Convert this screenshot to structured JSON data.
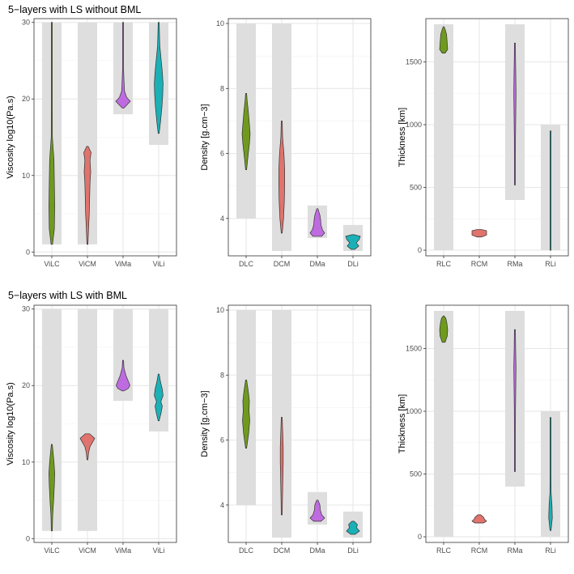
{
  "rows": [
    {
      "title": "5−layers with LS without BML"
    },
    {
      "title": "5−layers with LS with BML"
    }
  ],
  "chart_data": [
    {
      "type": "violin",
      "row": 0,
      "col": 0,
      "ylabel": "Viscosity log10(Pa.s)",
      "ylim": [
        -0.5,
        30.5
      ],
      "yticks": [
        0,
        10,
        20,
        30
      ],
      "categories": [
        "ViLC",
        "ViCM",
        "ViMa",
        "ViLi"
      ],
      "prior_ranges": [
        [
          1,
          30
        ],
        [
          1,
          30
        ],
        [
          18,
          30
        ],
        [
          14,
          30
        ]
      ],
      "colors": [
        "#6f9a1e",
        "#e0736d",
        "#bf6be0",
        "#1bb0b6"
      ],
      "violins": [
        {
          "name": "ViLC",
          "min": 1,
          "max": 30,
          "profile": [
            [
              1,
              0.1
            ],
            [
              3,
              0.35
            ],
            [
              6,
              0.4
            ],
            [
              9,
              0.35
            ],
            [
              12,
              0.3
            ],
            [
              15,
              0.08
            ],
            [
              20,
              0.06
            ],
            [
              25,
              0.06
            ],
            [
              30,
              0.04
            ]
          ]
        },
        {
          "name": "ViCM",
          "min": 1,
          "max": 13.8,
          "profile": [
            [
              1,
              0.05
            ],
            [
              3,
              0.15
            ],
            [
              5,
              0.25
            ],
            [
              7,
              0.3
            ],
            [
              9,
              0.35
            ],
            [
              10.5,
              0.45
            ],
            [
              12,
              0.35
            ],
            [
              13,
              0.5
            ],
            [
              13.8,
              0.1
            ]
          ]
        },
        {
          "name": "ViMa",
          "min": 18.8,
          "max": 30,
          "profile": [
            [
              18.8,
              0.1
            ],
            [
              19.3,
              0.6
            ],
            [
              19.7,
              1.0
            ],
            [
              20.2,
              0.5
            ],
            [
              21,
              0.2
            ],
            [
              22.5,
              0.12
            ],
            [
              24,
              0.06
            ],
            [
              27,
              0.04
            ],
            [
              30,
              0.02
            ]
          ]
        },
        {
          "name": "ViLi",
          "min": 15.5,
          "max": 30,
          "profile": [
            [
              15.5,
              0.05
            ],
            [
              17,
              0.25
            ],
            [
              19,
              0.45
            ],
            [
              20.5,
              0.55
            ],
            [
              22,
              0.6
            ],
            [
              23.5,
              0.5
            ],
            [
              25,
              0.35
            ],
            [
              27,
              0.15
            ],
            [
              30,
              0.05
            ]
          ]
        }
      ]
    },
    {
      "type": "violin",
      "row": 0,
      "col": 1,
      "ylabel": "Density [g.cm−3]",
      "ylim": [
        2.85,
        10.15
      ],
      "yticks": [
        4,
        6,
        8,
        10
      ],
      "categories": [
        "DLC",
        "DCM",
        "DMa",
        "DLi"
      ],
      "prior_ranges": [
        [
          4,
          10
        ],
        [
          3,
          10
        ],
        [
          3.4,
          4.4
        ],
        [
          3,
          3.8
        ]
      ],
      "colors": [
        "#6f9a1e",
        "#e0736d",
        "#bf6be0",
        "#1bb0b6"
      ],
      "violins": [
        {
          "name": "DLC",
          "min": 5.5,
          "max": 7.85,
          "profile": [
            [
              5.5,
              0.05
            ],
            [
              5.9,
              0.25
            ],
            [
              6.3,
              0.45
            ],
            [
              6.6,
              0.55
            ],
            [
              6.9,
              0.45
            ],
            [
              7.3,
              0.3
            ],
            [
              7.6,
              0.15
            ],
            [
              7.85,
              0.03
            ]
          ]
        },
        {
          "name": "DCM",
          "min": 3.55,
          "max": 7.0,
          "profile": [
            [
              3.55,
              0.05
            ],
            [
              4.0,
              0.25
            ],
            [
              4.5,
              0.35
            ],
            [
              5.0,
              0.4
            ],
            [
              5.5,
              0.4
            ],
            [
              6.0,
              0.3
            ],
            [
              6.5,
              0.12
            ],
            [
              7.0,
              0.03
            ]
          ]
        },
        {
          "name": "DMa",
          "min": 3.45,
          "max": 4.3,
          "profile": [
            [
              3.45,
              0.6
            ],
            [
              3.55,
              1.0
            ],
            [
              3.65,
              0.7
            ],
            [
              3.8,
              0.5
            ],
            [
              3.95,
              0.45
            ],
            [
              4.1,
              0.35
            ],
            [
              4.3,
              0.08
            ]
          ]
        },
        {
          "name": "DLi",
          "min": 3.05,
          "max": 3.5,
          "profile": [
            [
              3.05,
              0.25
            ],
            [
              3.15,
              0.8
            ],
            [
              3.25,
              0.45
            ],
            [
              3.35,
              0.85
            ],
            [
              3.45,
              1.0
            ],
            [
              3.5,
              0.15
            ]
          ]
        }
      ]
    },
    {
      "type": "violin",
      "row": 0,
      "col": 2,
      "ylabel": "Thickness [km]",
      "ylim": [
        -45,
        1845
      ],
      "yticks": [
        0,
        500,
        1000,
        1500
      ],
      "categories": [
        "RLC",
        "RCM",
        "RMa",
        "RLi"
      ],
      "prior_ranges": [
        [
          0,
          1800
        ],
        [
          0,
          0
        ],
        [
          400,
          1800
        ],
        [
          0,
          1000
        ]
      ],
      "colors": [
        "#6f9a1e",
        "#e0736d",
        "#bf6be0",
        "#1bb0b6"
      ],
      "violins": [
        {
          "name": "RLC",
          "min": 1570,
          "max": 1780,
          "profile": [
            [
              1570,
              0.2
            ],
            [
              1600,
              0.55
            ],
            [
              1640,
              0.5
            ],
            [
              1680,
              0.45
            ],
            [
              1720,
              0.4
            ],
            [
              1760,
              0.2
            ],
            [
              1780,
              0.05
            ]
          ]
        },
        {
          "name": "RCM",
          "min": 105,
          "max": 165,
          "profile": [
            [
              105,
              0.3
            ],
            [
              120,
              1.0
            ],
            [
              140,
              1.0
            ],
            [
              155,
              1.0
            ],
            [
              165,
              0.3
            ]
          ]
        },
        {
          "name": "RMa",
          "min": 520,
          "max": 1650,
          "profile": [
            [
              520,
              0.02
            ],
            [
              700,
              0.06
            ],
            [
              900,
              0.08
            ],
            [
              1100,
              0.12
            ],
            [
              1250,
              0.15
            ],
            [
              1400,
              0.12
            ],
            [
              1550,
              0.08
            ],
            [
              1650,
              0.02
            ]
          ]
        },
        {
          "name": "RLi",
          "min": 0,
          "max": 950,
          "profile": [
            [
              0,
              0.02
            ],
            [
              150,
              0.04
            ],
            [
              300,
              0.06
            ],
            [
              500,
              0.05
            ],
            [
              700,
              0.04
            ],
            [
              950,
              0.02
            ]
          ]
        }
      ]
    },
    {
      "type": "violin",
      "row": 1,
      "col": 0,
      "ylabel": "Viscosity log10(Pa.s)",
      "ylim": [
        -0.5,
        30.5
      ],
      "yticks": [
        0,
        10,
        20,
        30
      ],
      "categories": [
        "ViLC",
        "ViCM",
        "ViMa",
        "ViLi"
      ],
      "prior_ranges": [
        [
          1,
          30
        ],
        [
          1,
          30
        ],
        [
          18,
          30
        ],
        [
          14,
          30
        ]
      ],
      "colors": [
        "#6f9a1e",
        "#e0736d",
        "#bf6be0",
        "#1bb0b6"
      ],
      "violins": [
        {
          "name": "ViLC",
          "min": 1,
          "max": 12.3,
          "profile": [
            [
              1,
              0.05
            ],
            [
              3,
              0.12
            ],
            [
              5,
              0.25
            ],
            [
              7,
              0.35
            ],
            [
              8.5,
              0.4
            ],
            [
              10,
              0.3
            ],
            [
              11.5,
              0.15
            ],
            [
              12.3,
              0.03
            ]
          ]
        },
        {
          "name": "ViCM",
          "min": 10.3,
          "max": 13.7,
          "profile": [
            [
              10.3,
              0.05
            ],
            [
              11.2,
              0.15
            ],
            [
              12.0,
              0.35
            ],
            [
              12.6,
              0.7
            ],
            [
              13.1,
              1.0
            ],
            [
              13.7,
              0.3
            ]
          ]
        },
        {
          "name": "ViMa",
          "min": 19.3,
          "max": 23.3,
          "profile": [
            [
              19.3,
              0.1
            ],
            [
              19.6,
              0.7
            ],
            [
              20.0,
              0.95
            ],
            [
              20.5,
              0.75
            ],
            [
              21.3,
              0.4
            ],
            [
              22.3,
              0.12
            ],
            [
              23.3,
              0.02
            ]
          ]
        },
        {
          "name": "ViLi",
          "min": 15.4,
          "max": 21.5,
          "profile": [
            [
              15.4,
              0.05
            ],
            [
              16.3,
              0.3
            ],
            [
              17.3,
              0.5
            ],
            [
              17.9,
              0.3
            ],
            [
              18.7,
              0.6
            ],
            [
              19.5,
              0.5
            ],
            [
              20.5,
              0.25
            ],
            [
              21.5,
              0.04
            ]
          ]
        }
      ]
    },
    {
      "type": "violin",
      "row": 1,
      "col": 1,
      "ylabel": "Density [g.cm−3]",
      "ylim": [
        2.85,
        10.15
      ],
      "yticks": [
        4,
        6,
        8,
        10
      ],
      "categories": [
        "DLC",
        "DCM",
        "DMa",
        "DLi"
      ],
      "prior_ranges": [
        [
          4,
          10
        ],
        [
          3,
          10
        ],
        [
          3.4,
          4.4
        ],
        [
          3,
          3.8
        ]
      ],
      "colors": [
        "#6f9a1e",
        "#e0736d",
        "#bf6be0",
        "#1bb0b6"
      ],
      "violins": [
        {
          "name": "DLC",
          "min": 5.75,
          "max": 7.85,
          "profile": [
            [
              5.75,
              0.05
            ],
            [
              6.2,
              0.35
            ],
            [
              6.6,
              0.5
            ],
            [
              6.9,
              0.4
            ],
            [
              7.2,
              0.45
            ],
            [
              7.5,
              0.3
            ],
            [
              7.85,
              0.03
            ]
          ]
        },
        {
          "name": "DCM",
          "min": 3.7,
          "max": 6.7,
          "profile": [
            [
              3.7,
              0.03
            ],
            [
              4.2,
              0.1
            ],
            [
              4.8,
              0.15
            ],
            [
              5.3,
              0.2
            ],
            [
              5.8,
              0.2
            ],
            [
              6.3,
              0.12
            ],
            [
              6.7,
              0.03
            ]
          ]
        },
        {
          "name": "DMa",
          "min": 3.5,
          "max": 4.15,
          "profile": [
            [
              3.5,
              0.5
            ],
            [
              3.6,
              1.0
            ],
            [
              3.7,
              0.6
            ],
            [
              3.85,
              0.4
            ],
            [
              4.0,
              0.35
            ],
            [
              4.15,
              0.1
            ]
          ]
        },
        {
          "name": "DLi",
          "min": 3.1,
          "max": 3.5,
          "profile": [
            [
              3.1,
              0.3
            ],
            [
              3.2,
              0.9
            ],
            [
              3.3,
              0.5
            ],
            [
              3.4,
              0.6
            ],
            [
              3.5,
              0.15
            ]
          ]
        }
      ]
    },
    {
      "type": "violin",
      "row": 1,
      "col": 2,
      "ylabel": "Thickness [km]",
      "ylim": [
        -45,
        1845
      ],
      "yticks": [
        0,
        500,
        1000,
        1500
      ],
      "categories": [
        "RLC",
        "RCM",
        "RMa",
        "RLi"
      ],
      "prior_ranges": [
        [
          0,
          1800
        ],
        [
          0,
          0
        ],
        [
          400,
          1800
        ],
        [
          0,
          1000
        ]
      ],
      "colors": [
        "#6f9a1e",
        "#e0736d",
        "#bf6be0",
        "#1bb0b6"
      ],
      "violins": [
        {
          "name": "RLC",
          "min": 1550,
          "max": 1760,
          "profile": [
            [
              1550,
              0.2
            ],
            [
              1600,
              0.5
            ],
            [
              1650,
              0.55
            ],
            [
              1700,
              0.45
            ],
            [
              1740,
              0.3
            ],
            [
              1760,
              0.05
            ]
          ]
        },
        {
          "name": "RCM",
          "min": 110,
          "max": 175,
          "profile": [
            [
              110,
              0.6
            ],
            [
              125,
              1.0
            ],
            [
              140,
              0.7
            ],
            [
              155,
              0.6
            ],
            [
              175,
              0.2
            ]
          ]
        },
        {
          "name": "RMa",
          "min": 520,
          "max": 1650,
          "profile": [
            [
              520,
              0.02
            ],
            [
              800,
              0.05
            ],
            [
              1000,
              0.08
            ],
            [
              1200,
              0.12
            ],
            [
              1350,
              0.15
            ],
            [
              1500,
              0.1
            ],
            [
              1650,
              0.02
            ]
          ]
        },
        {
          "name": "RLi",
          "min": 50,
          "max": 950,
          "profile": [
            [
              50,
              0.05
            ],
            [
              150,
              0.25
            ],
            [
              250,
              0.2
            ],
            [
              350,
              0.08
            ],
            [
              500,
              0.04
            ],
            [
              700,
              0.03
            ],
            [
              950,
              0.01
            ]
          ]
        }
      ]
    }
  ]
}
